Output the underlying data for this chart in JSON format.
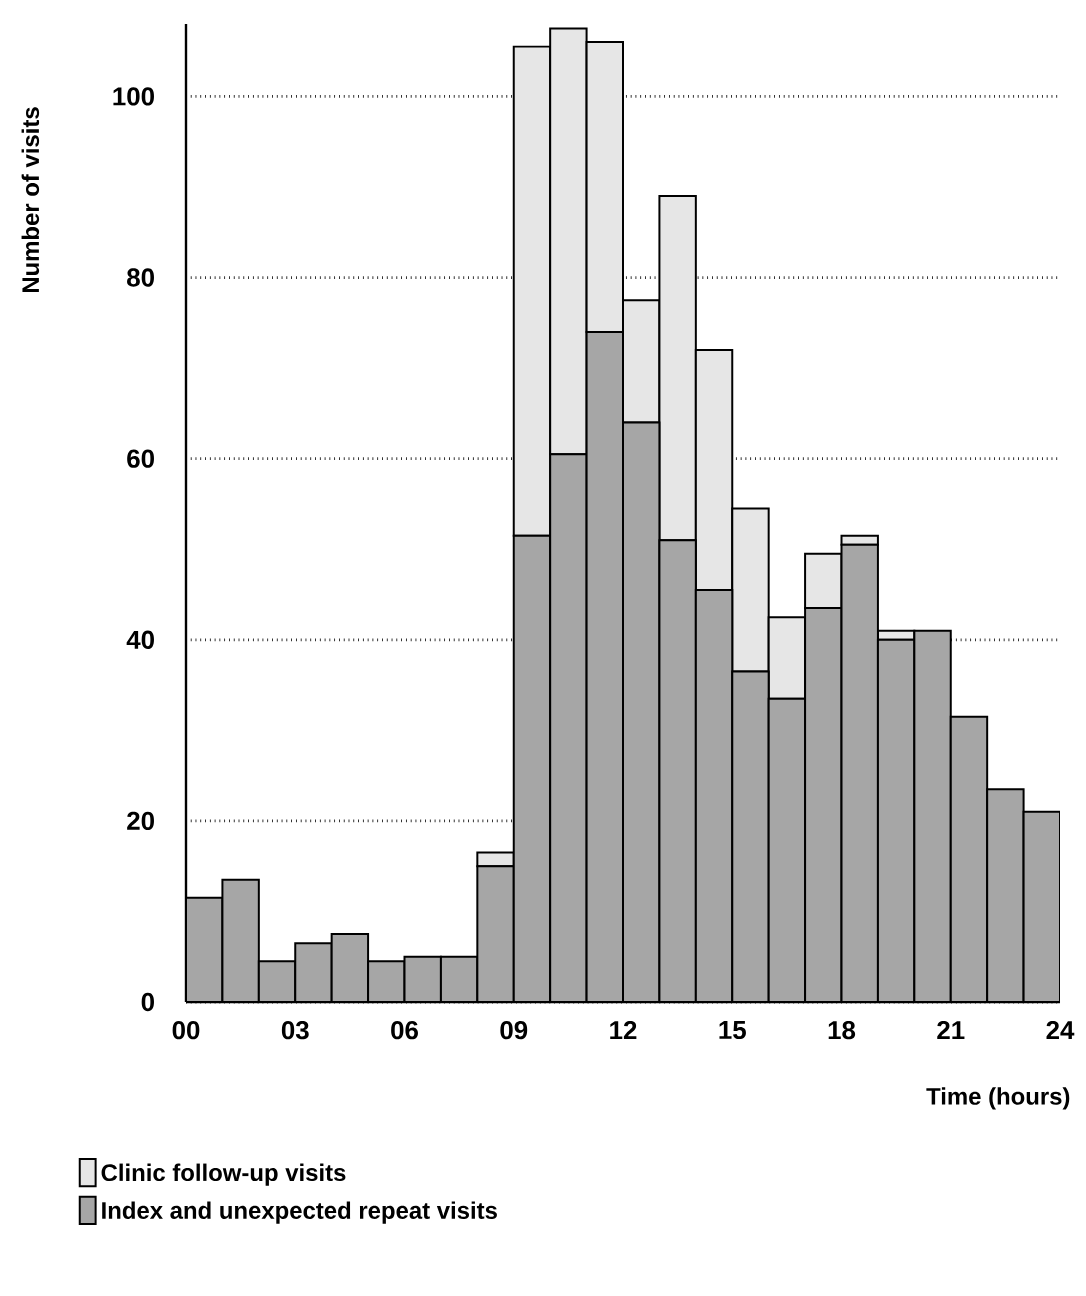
{
  "chart_data": {
    "type": "bar",
    "stacked": true,
    "xlabel": "Time (hours)",
    "ylabel": "Number of visits",
    "x": [
      0.5,
      1.5,
      2.5,
      3.5,
      4.5,
      5.5,
      6.5,
      7.5,
      8.5,
      9.5,
      10.5,
      11.5,
      12.5,
      13.5,
      14.5,
      15.5,
      16.5,
      17.5,
      18.5,
      19.5,
      20.5,
      21.5,
      22.5,
      23.5
    ],
    "series": [
      {
        "name": "Index and unexpected repeat visits",
        "color": "#a6a6a6",
        "values": [
          11.5,
          13.5,
          4.5,
          6.5,
          7.5,
          4.5,
          5,
          5,
          15,
          51.5,
          60.5,
          74,
          64,
          51,
          45.5,
          36.5,
          33.5,
          43.5,
          50.5,
          40,
          41,
          31.5,
          23.5,
          21
        ]
      },
      {
        "name": "Clinic follow-up visits",
        "color": "#e6e6e6",
        "values": [
          0,
          0,
          0,
          0,
          0,
          0,
          0,
          0,
          1.5,
          54,
          47,
          32,
          13.5,
          38,
          26.5,
          18,
          9,
          6,
          1,
          1,
          0,
          0,
          0,
          0
        ]
      }
    ],
    "xlim": [
      0,
      24
    ],
    "xticks": [
      {
        "value": 0,
        "label": "00"
      },
      {
        "value": 3,
        "label": "03"
      },
      {
        "value": 6,
        "label": "06"
      },
      {
        "value": 9,
        "label": "09"
      },
      12,
      15,
      18,
      21,
      24
    ],
    "ylim": [
      0,
      108
    ],
    "yticks": [
      0,
      20,
      40,
      60,
      80,
      100
    ],
    "grid": "y",
    "legend": "bottom left"
  }
}
